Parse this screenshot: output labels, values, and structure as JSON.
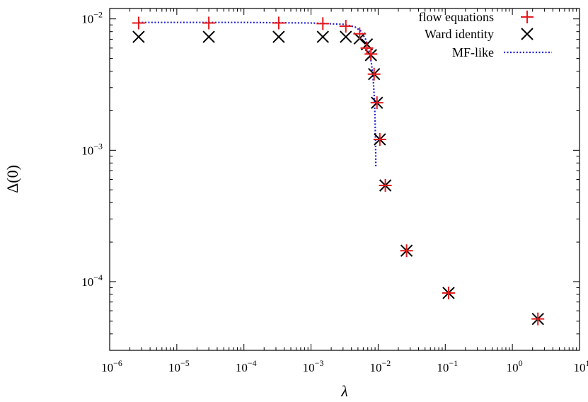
{
  "chart_data": {
    "type": "scatter",
    "xscale": "log",
    "yscale": "log",
    "xlim": [
      1e-06,
      10
    ],
    "ylim": [
      3e-05,
      0.012
    ],
    "xlabel": "λ",
    "ylabel": "Δ(0)",
    "x_ticks": [
      {
        "value": 1e-06,
        "base": "10",
        "exp": "−6"
      },
      {
        "value": 1e-05,
        "base": "10",
        "exp": "−5"
      },
      {
        "value": 0.0001,
        "base": "10",
        "exp": "−4"
      },
      {
        "value": 0.001,
        "base": "10",
        "exp": "−3"
      },
      {
        "value": 0.01,
        "base": "10",
        "exp": "−2"
      },
      {
        "value": 0.1,
        "base": "10",
        "exp": "−1"
      },
      {
        "value": 1,
        "base": "10",
        "exp": "0"
      },
      {
        "value": 10,
        "base": "10",
        "exp": "1"
      }
    ],
    "y_ticks": [
      {
        "value": 0.0001,
        "base": "10",
        "exp": "−4"
      },
      {
        "value": 0.001,
        "base": "10",
        "exp": "−3"
      },
      {
        "value": 0.01,
        "base": "10",
        "exp": "−2"
      }
    ],
    "legend_position": "top-right",
    "series": [
      {
        "name": "flow equations",
        "marker": "plus",
        "color": "#e41a1c",
        "x": [
          2.7e-06,
          3e-05,
          0.00033,
          0.0015,
          0.0033,
          0.0053,
          0.0068,
          0.0078,
          0.0087,
          0.0096,
          0.0106,
          0.0128,
          0.0265,
          0.112,
          2.4
        ],
        "y": [
          0.0093,
          0.0093,
          0.0093,
          0.0092,
          0.0088,
          0.0077,
          0.006,
          0.0054,
          0.0038,
          0.0023,
          0.00121,
          0.00054,
          0.000172,
          8.2e-05,
          5.2e-05
        ]
      },
      {
        "name": "Ward identity",
        "marker": "cross",
        "color": "#000000",
        "x": [
          2.7e-06,
          3e-05,
          0.00033,
          0.0015,
          0.0033,
          0.0053,
          0.0068,
          0.0078,
          0.0087,
          0.0096,
          0.0106,
          0.0128,
          0.0265,
          0.112,
          2.4
        ],
        "y": [
          0.0073,
          0.0073,
          0.0073,
          0.0073,
          0.0073,
          0.0071,
          0.0064,
          0.0053,
          0.0038,
          0.0023,
          0.00121,
          0.00054,
          0.000172,
          8.2e-05,
          5.2e-05
        ]
      },
      {
        "name": "MF-like",
        "line": "dotted",
        "color": "#1f1fd6",
        "x": [
          2.7e-06,
          1e-05,
          0.0001,
          0.001,
          0.003,
          0.0045,
          0.0055,
          0.0065,
          0.0073,
          0.008,
          0.0085,
          0.0088,
          0.009,
          0.00915,
          0.00925
        ],
        "y": [
          0.0094,
          0.0094,
          0.0094,
          0.0093,
          0.0091,
          0.0087,
          0.0081,
          0.007,
          0.0058,
          0.0045,
          0.0033,
          0.0024,
          0.0017,
          0.0011,
          0.00074
        ]
      }
    ]
  }
}
